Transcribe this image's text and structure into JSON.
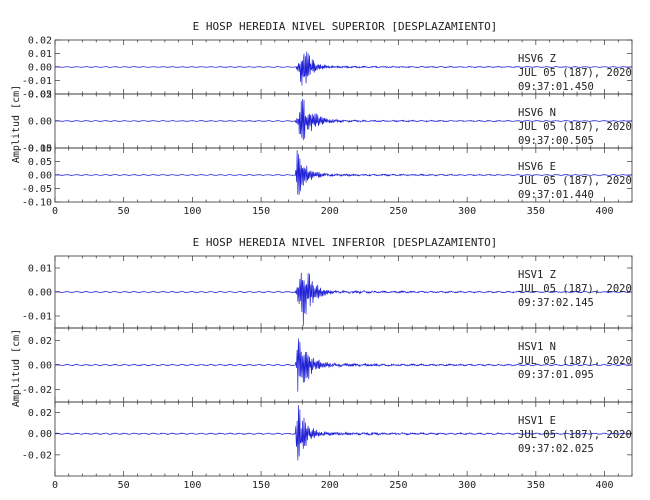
{
  "chart_data": [
    {
      "type": "line",
      "title": "E HOSP HEREDIA NIVEL SUPERIOR [DESPLAZAMIENTO]",
      "ylabel": "Amplitud [cm]",
      "xlim": [
        0,
        420
      ],
      "x_ticks": [
        "0",
        "50",
        "100",
        "150",
        "200",
        "250",
        "300",
        "350",
        "400"
      ],
      "line_color": "#1f1fd6",
      "channels": [
        {
          "ylim": [
            -0.02,
            0.02
          ],
          "y_ticks": [
            "0.02",
            "0.01",
            "0.00",
            "-0.01",
            "-0.02"
          ],
          "station": "HSV6",
          "component": "Z",
          "date": "JUL 05 (187), 2020",
          "time": "09:37:01.450",
          "series": [
            {
              "onset_s": 175,
              "peak_time_s": 181,
              "peak_abs": 0.016,
              "decay_s": 14
            }
          ]
        },
        {
          "ylim": [
            -0.05,
            0.05
          ],
          "y_ticks": [
            "0.05",
            "0.00",
            "-0.05"
          ],
          "station": "HSV6",
          "component": "N",
          "date": "JUL 05 (187), 2020",
          "time": "09:37:00.505",
          "series": [
            {
              "onset_s": 175,
              "peak_time_s": 180,
              "peak_abs": 0.045,
              "decay_s": 18
            }
          ]
        },
        {
          "ylim": [
            -0.1,
            0.1
          ],
          "y_ticks": [
            "0.10",
            "0.05",
            "0.00",
            "-0.05",
            "-0.10"
          ],
          "station": "HSV6",
          "component": "E",
          "date": "JUL 05 (187), 2020",
          "time": "09:37:01.440",
          "series": [
            {
              "onset_s": 175,
              "peak_time_s": 176,
              "peak_abs": 0.095,
              "decay_s": 16
            }
          ]
        }
      ]
    },
    {
      "type": "line",
      "title": "E HOSP HEREDIA NIVEL INFERIOR [DESPLAZAMIENTO]",
      "ylabel": "Amplitud [cm]",
      "xlim": [
        0,
        420
      ],
      "x_ticks": [
        "0",
        "50",
        "100",
        "150",
        "200",
        "250",
        "300",
        "350",
        "400"
      ],
      "line_color": "#1f1fd6",
      "channels": [
        {
          "ylim": [
            -0.015,
            0.015
          ],
          "y_ticks": [
            "0.01",
            "0.00",
            "-0.01"
          ],
          "station": "HSV1",
          "component": "Z",
          "date": "JUL 05 (187), 2020",
          "time": "09:37:02.145",
          "series": [
            {
              "onset_s": 175,
              "peak_time_s": 181,
              "peak_abs": 0.013,
              "decay_s": 15
            }
          ]
        },
        {
          "ylim": [
            -0.03,
            0.03
          ],
          "y_ticks": [
            "0.02",
            "0.00",
            "-0.02"
          ],
          "station": "HSV1",
          "component": "N",
          "date": "JUL 05 (187), 2020",
          "time": "09:37:01.095",
          "series": [
            {
              "onset_s": 175,
              "peak_time_s": 177,
              "peak_abs": 0.028,
              "decay_s": 17
            }
          ]
        },
        {
          "ylim": [
            -0.04,
            0.03
          ],
          "y_ticks": [
            "0.02",
            "0.00",
            "-0.02"
          ],
          "station": "HSV1",
          "component": "E",
          "date": "JUL 05 (187), 2020",
          "time": "09:37:02.025",
          "series": [
            {
              "onset_s": 175,
              "peak_time_s": 176,
              "peak_abs": 0.034,
              "decay_s": 14
            }
          ]
        }
      ]
    }
  ]
}
